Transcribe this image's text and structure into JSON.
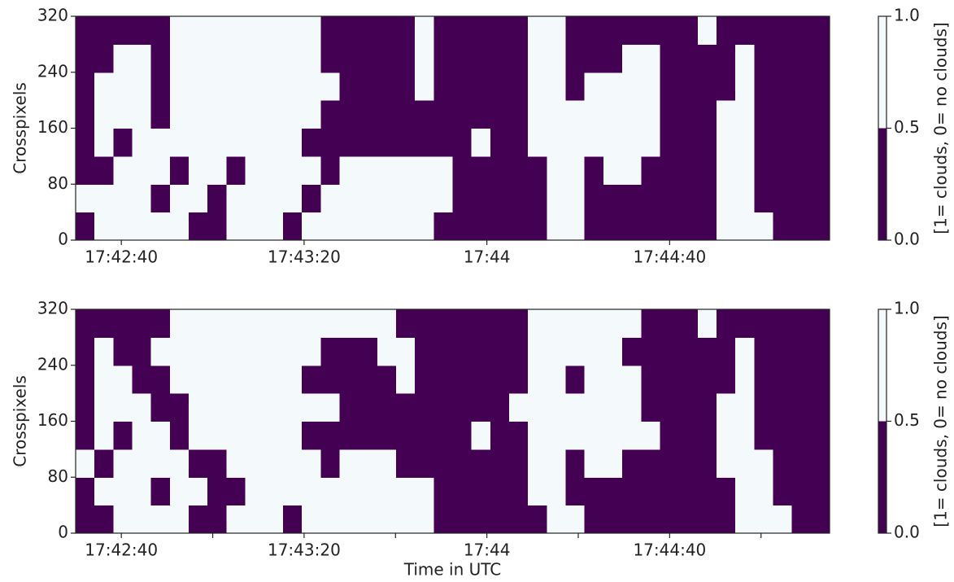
{
  "chart_data": [
    {
      "type": "heatmap",
      "ylabel": "Crosspixels",
      "xlim": [
        63750,
        63915
      ],
      "xticks": [
        {
          "value": 63760,
          "label": "17:42:40"
        },
        {
          "value": 63800,
          "label": "17:43:20"
        },
        {
          "value": 63840,
          "label": "17:44"
        },
        {
          "value": 63880,
          "label": "17:44:40"
        }
      ],
      "ylim": [
        0,
        320
      ],
      "yticks": [
        0,
        80,
        160,
        240,
        320
      ],
      "colors": [
        "#440154",
        "#f4fafc"
      ],
      "clim": [
        0,
        1
      ],
      "cticks": [
        {
          "value": 0,
          "label": "0.0"
        },
        {
          "value": 0.5,
          "label": "0.5"
        },
        {
          "value": 1,
          "label": "1.0"
        }
      ],
      "clabel": "[1= clouds, 0= no clouds]",
      "z": [
        [
          0,
          1,
          1,
          1,
          1,
          1,
          0,
          0,
          1,
          1,
          1,
          0,
          1,
          1,
          1,
          1,
          1,
          1,
          1,
          0,
          0,
          0,
          0,
          0,
          0,
          1,
          1,
          0,
          0,
          0,
          0,
          0,
          0,
          0,
          1,
          1,
          1,
          0,
          0,
          0
        ],
        [
          1,
          1,
          1,
          1,
          0,
          1,
          1,
          0,
          1,
          1,
          1,
          1,
          0,
          1,
          1,
          1,
          1,
          1,
          1,
          1,
          0,
          0,
          0,
          0,
          0,
          1,
          1,
          0,
          0,
          0,
          0,
          0,
          0,
          0,
          1,
          1,
          0,
          0,
          0,
          0
        ],
        [
          0,
          0,
          1,
          1,
          1,
          0,
          1,
          1,
          0,
          1,
          1,
          1,
          1,
          0,
          1,
          1,
          1,
          1,
          1,
          1,
          0,
          0,
          0,
          0,
          0,
          1,
          1,
          0,
          1,
          1,
          0,
          0,
          0,
          0,
          1,
          1,
          0,
          0,
          0,
          0
        ],
        [
          0,
          1,
          0,
          1,
          1,
          1,
          1,
          1,
          1,
          1,
          1,
          1,
          0,
          0,
          0,
          0,
          0,
          0,
          0,
          0,
          0,
          1,
          0,
          0,
          1,
          1,
          1,
          1,
          1,
          1,
          1,
          0,
          0,
          0,
          1,
          1,
          0,
          0,
          0,
          0
        ],
        [
          0,
          1,
          1,
          1,
          0,
          1,
          1,
          1,
          1,
          1,
          1,
          1,
          1,
          0,
          0,
          0,
          0,
          0,
          0,
          0,
          0,
          0,
          0,
          0,
          1,
          1,
          1,
          1,
          1,
          1,
          1,
          0,
          0,
          0,
          1,
          1,
          0,
          0,
          0,
          0
        ],
        [
          0,
          1,
          1,
          1,
          0,
          1,
          1,
          1,
          1,
          1,
          1,
          1,
          1,
          1,
          0,
          0,
          0,
          0,
          1,
          0,
          0,
          0,
          0,
          0,
          1,
          1,
          0,
          1,
          1,
          1,
          1,
          0,
          0,
          0,
          0,
          1,
          0,
          0,
          0,
          0
        ],
        [
          0,
          0,
          1,
          1,
          0,
          1,
          1,
          1,
          1,
          1,
          1,
          1,
          1,
          0,
          0,
          0,
          0,
          0,
          1,
          0,
          0,
          0,
          0,
          0,
          1,
          1,
          0,
          0,
          0,
          1,
          1,
          0,
          0,
          0,
          0,
          1,
          0,
          0,
          0,
          0
        ],
        [
          0,
          0,
          0,
          0,
          0,
          1,
          1,
          1,
          1,
          1,
          1,
          1,
          1,
          0,
          0,
          0,
          0,
          0,
          1,
          0,
          0,
          0,
          0,
          0,
          1,
          1,
          0,
          0,
          0,
          0,
          0,
          0,
          0,
          1,
          0,
          0,
          0,
          0,
          0,
          0
        ]
      ]
    },
    {
      "type": "heatmap",
      "ylabel": "Crosspixels",
      "xlabel": "Time in UTC",
      "xlim": [
        63750,
        63915
      ],
      "xticks": [
        {
          "value": 63760,
          "label": "17:42:40"
        },
        {
          "value": 63800,
          "label": "17:43:20"
        },
        {
          "value": 63840,
          "label": "17:44"
        },
        {
          "value": 63880,
          "label": "17:44:40"
        }
      ],
      "xminorticks": [
        63780,
        63820,
        63860,
        63900
      ],
      "ylim": [
        0,
        320
      ],
      "yticks": [
        0,
        80,
        160,
        240,
        320
      ],
      "colors": [
        "#440154",
        "#f4fafc"
      ],
      "clim": [
        0,
        1
      ],
      "cticks": [
        {
          "value": 0,
          "label": "0.0"
        },
        {
          "value": 0.5,
          "label": "0.5"
        },
        {
          "value": 1,
          "label": "1.0"
        }
      ],
      "clabel": "[1= clouds, 0= no clouds]",
      "z": [
        [
          0,
          0,
          1,
          1,
          1,
          1,
          0,
          0,
          1,
          1,
          1,
          0,
          1,
          1,
          1,
          1,
          1,
          1,
          1,
          0,
          0,
          0,
          0,
          0,
          0,
          1,
          1,
          0,
          0,
          0,
          0,
          0,
          0,
          0,
          0,
          1,
          1,
          1,
          0,
          0
        ],
        [
          0,
          1,
          1,
          1,
          0,
          1,
          1,
          0,
          0,
          1,
          1,
          1,
          1,
          1,
          1,
          1,
          1,
          1,
          1,
          0,
          0,
          0,
          0,
          0,
          1,
          1,
          0,
          0,
          0,
          0,
          0,
          0,
          0,
          0,
          0,
          1,
          1,
          0,
          0,
          0
        ],
        [
          1,
          0,
          1,
          1,
          1,
          1,
          0,
          0,
          1,
          1,
          1,
          1,
          1,
          0,
          1,
          1,
          1,
          0,
          0,
          0,
          0,
          0,
          0,
          0,
          1,
          1,
          0,
          1,
          1,
          0,
          0,
          0,
          0,
          0,
          1,
          1,
          1,
          0,
          0,
          0
        ],
        [
          0,
          1,
          0,
          1,
          1,
          0,
          1,
          1,
          1,
          1,
          1,
          1,
          0,
          0,
          0,
          0,
          0,
          0,
          0,
          0,
          0,
          1,
          0,
          0,
          1,
          1,
          1,
          1,
          1,
          1,
          1,
          0,
          0,
          0,
          1,
          1,
          0,
          0,
          0,
          0
        ],
        [
          0,
          1,
          1,
          1,
          0,
          0,
          1,
          1,
          1,
          1,
          1,
          1,
          1,
          1,
          0,
          0,
          0,
          0,
          0,
          0,
          0,
          0,
          0,
          1,
          1,
          1,
          1,
          1,
          1,
          1,
          0,
          0,
          0,
          0,
          1,
          1,
          0,
          0,
          0,
          0
        ],
        [
          0,
          1,
          1,
          0,
          0,
          1,
          1,
          1,
          1,
          1,
          1,
          1,
          0,
          0,
          0,
          0,
          0,
          1,
          0,
          0,
          0,
          0,
          0,
          0,
          1,
          1,
          0,
          1,
          1,
          1,
          0,
          0,
          0,
          0,
          0,
          1,
          0,
          0,
          0,
          0
        ],
        [
          0,
          1,
          0,
          0,
          1,
          1,
          1,
          1,
          1,
          1,
          1,
          1,
          1,
          0,
          0,
          0,
          1,
          1,
          0,
          0,
          0,
          0,
          0,
          0,
          1,
          1,
          1,
          1,
          1,
          0,
          0,
          0,
          0,
          0,
          0,
          1,
          0,
          0,
          0,
          0
        ],
        [
          0,
          0,
          0,
          0,
          0,
          1,
          1,
          1,
          1,
          1,
          1,
          1,
          1,
          1,
          1,
          1,
          1,
          0,
          0,
          0,
          0,
          0,
          0,
          0,
          1,
          1,
          1,
          1,
          1,
          1,
          0,
          0,
          0,
          1,
          0,
          0,
          0,
          0,
          0,
          0
        ]
      ]
    }
  ]
}
